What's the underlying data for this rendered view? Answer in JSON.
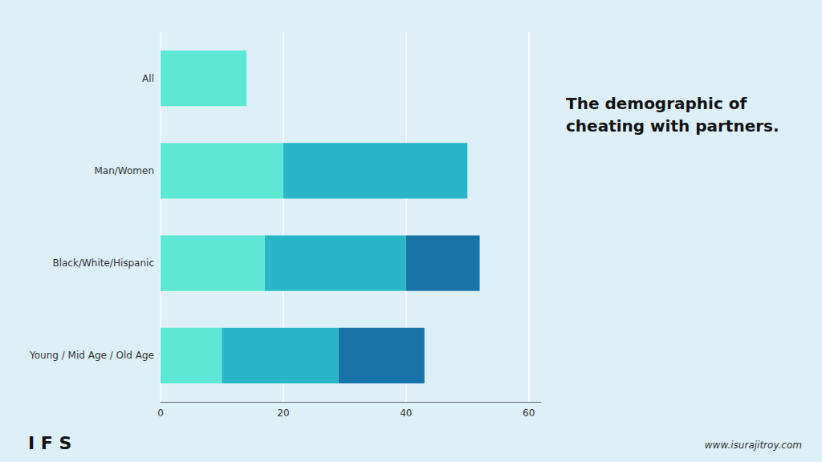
{
  "chart_data": {
    "type": "bar",
    "orientation": "horizontal",
    "stacked": true,
    "title": "The demographic of\ncheating with partners.",
    "categories": [
      "Young / Mid Age / Old Age",
      "Black/White/Hispanic",
      "Man/Women",
      "All"
    ],
    "series": [
      {
        "color": "#5CE8D4",
        "values": [
          10,
          17,
          20,
          14
        ]
      },
      {
        "color": "#28B6C8",
        "values": [
          19,
          23,
          30,
          0
        ]
      },
      {
        "color": "#1874A8",
        "values": [
          14,
          12,
          0,
          0
        ]
      }
    ],
    "xlim": [
      0,
      62
    ],
    "xticks": [
      0,
      20,
      40,
      60
    ],
    "grid": true,
    "annotations": [
      "I F S",
      "www.isurajitroy.com"
    ]
  }
}
